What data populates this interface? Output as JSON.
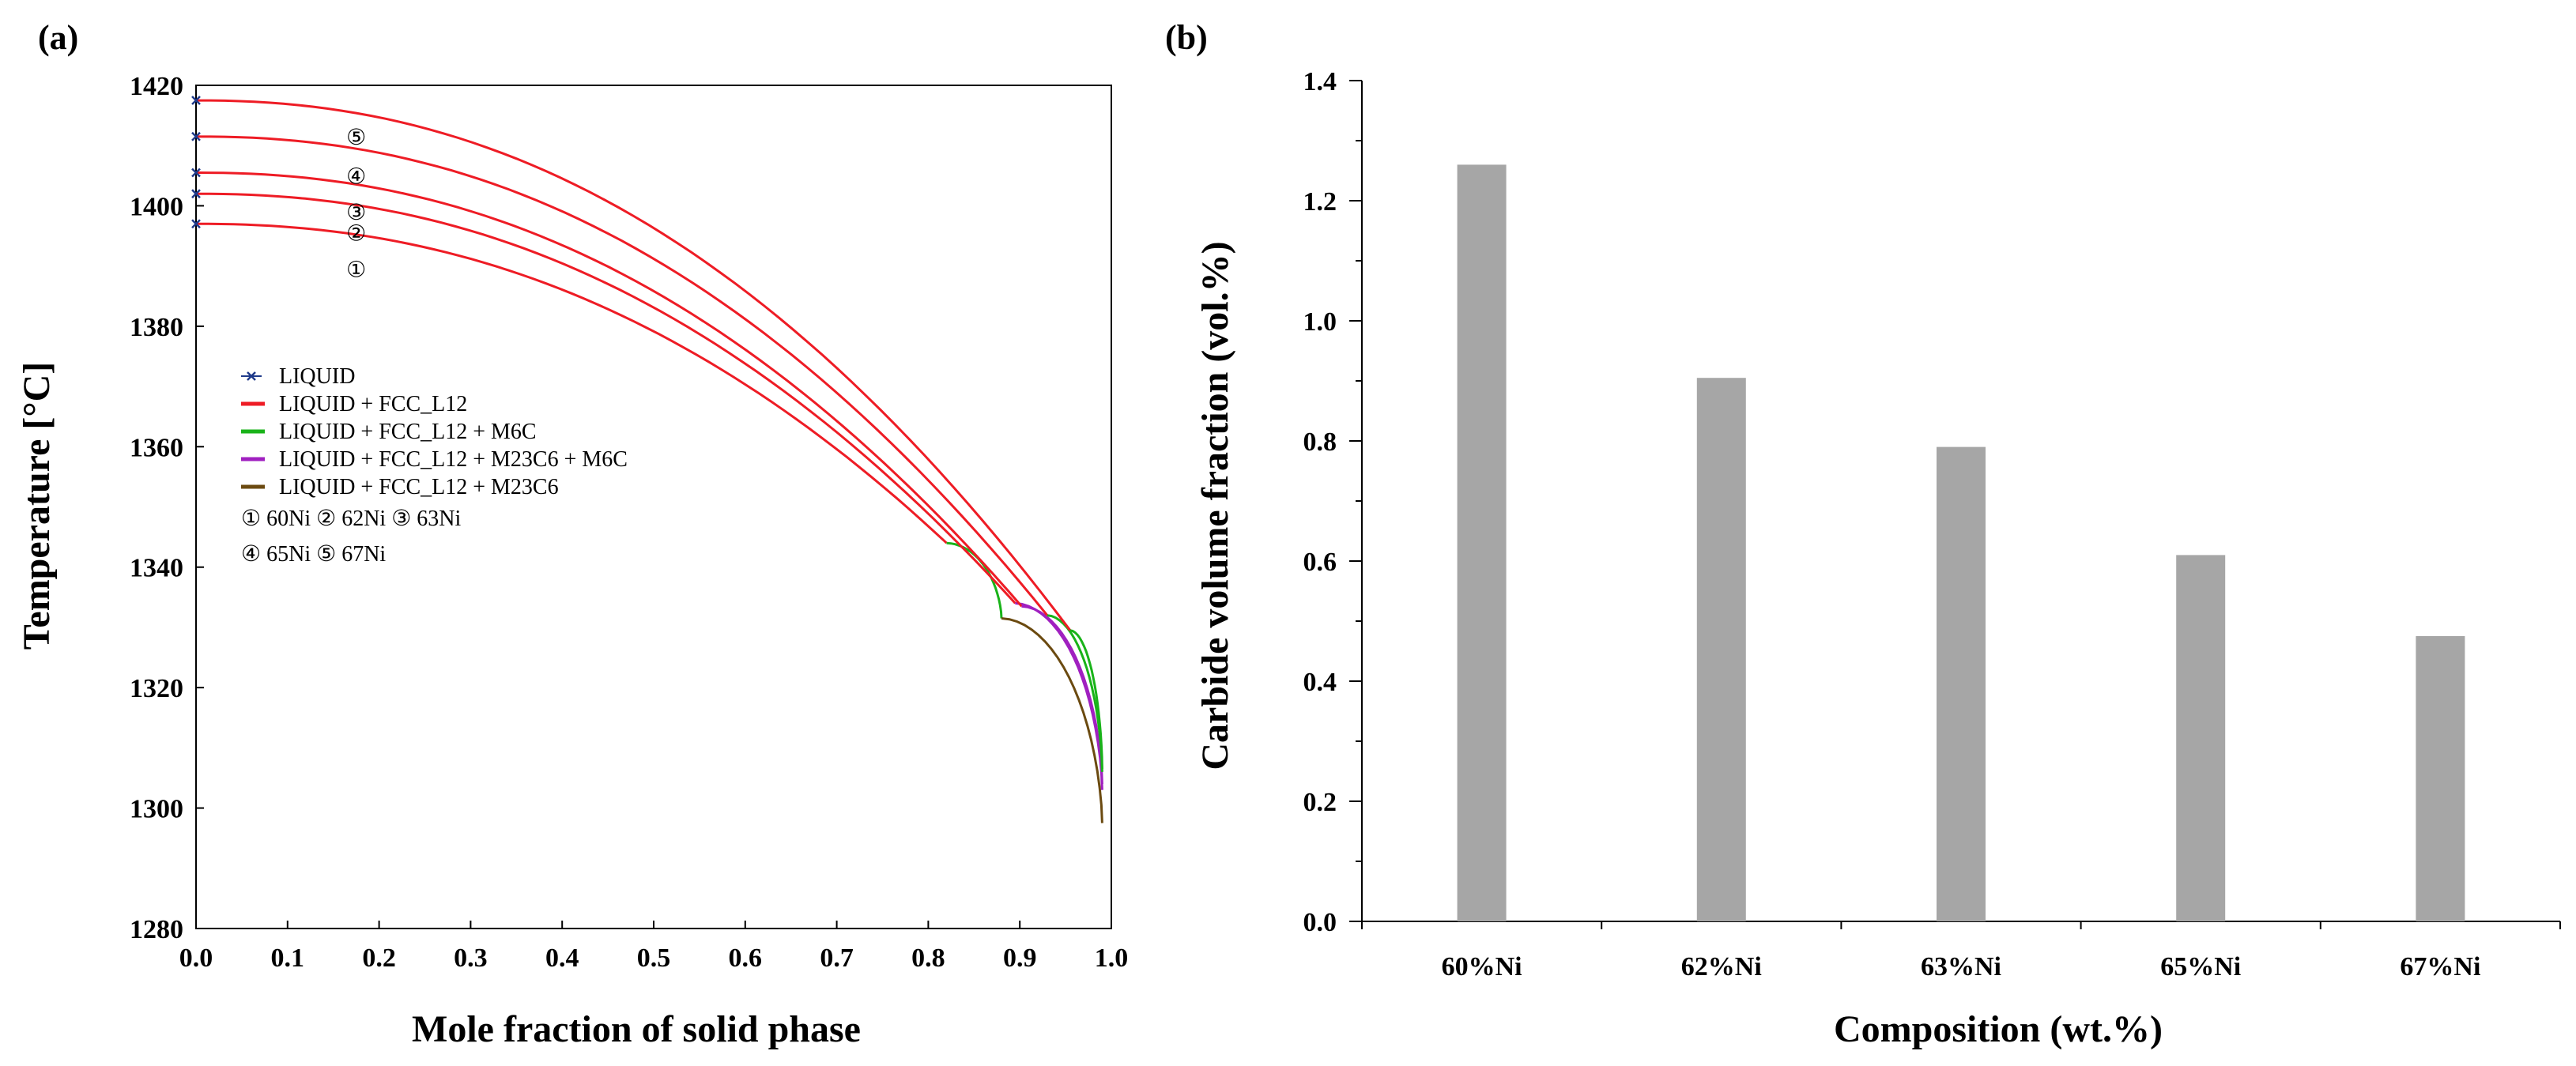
{
  "panel_labels": [
    "(a)",
    "(b)"
  ],
  "chart_data": [
    {
      "type": "line",
      "panel": "(a)",
      "xlabel": "Mole fraction of solid phase",
      "ylabel": "Temperature [°C]",
      "xlim": [
        0.0,
        1.0
      ],
      "ylim": [
        1280,
        1420
      ],
      "xticks": [
        "0.0",
        "0.1",
        "0.2",
        "0.3",
        "0.4",
        "0.5",
        "0.6",
        "0.7",
        "0.8",
        "0.9",
        "1.0"
      ],
      "yticks": [
        "1280",
        "1300",
        "1320",
        "1340",
        "1360",
        "1380",
        "1400",
        "1420"
      ],
      "legend": [
        {
          "label": "LIQUID",
          "color": "#1f3a8a",
          "style": "marker"
        },
        {
          "label": "LIQUID + FCC_L12",
          "color": "#ee1c25",
          "style": "line"
        },
        {
          "label": "LIQUID + FCC_L12 + M6C",
          "color": "#19b319",
          "style": "line"
        },
        {
          "label": "LIQUID + FCC_L12 + M23C6 + M6C",
          "color": "#a020c0",
          "style": "line"
        },
        {
          "label": "LIQUID + FCC_L12 + M23C6",
          "color": "#6b4a10",
          "style": "line"
        }
      ],
      "legend_notes": [
        "① 60Ni ② 62Ni  ③ 63Ni",
        "④ 65Ni ⑤ 67Ni"
      ],
      "curve_labels": [
        {
          "text": "⑤",
          "x": 0.175,
          "y": 1411.5
        },
        {
          "text": "④",
          "x": 0.175,
          "y": 1405
        },
        {
          "text": "③",
          "x": 0.175,
          "y": 1399
        },
        {
          "text": "②",
          "x": 0.175,
          "y": 1395.5
        },
        {
          "text": "①",
          "x": 0.175,
          "y": 1389.5
        }
      ],
      "series": [
        {
          "name": "60Ni",
          "T0": 1397,
          "tail": [
            [
              0.82,
              1344,
              "#ee1c25"
            ],
            [
              0.88,
              1331.5,
              "#19b319"
            ],
            [
              0.99,
              1297.5,
              "#6b4a10"
            ]
          ]
        },
        {
          "name": "62Ni",
          "T0": 1402,
          "tail": [
            [
              0.895,
              1334,
              "#ee1c25"
            ],
            [
              0.99,
              1303,
              "#a020c0"
            ]
          ]
        },
        {
          "name": "63Ni",
          "T0": 1405.5,
          "tail": [
            [
              0.902,
              1333.5,
              "#ee1c25"
            ],
            [
              0.99,
              1304,
              "#a020c0"
            ]
          ]
        },
        {
          "name": "65Ni",
          "T0": 1411.5,
          "tail": [
            [
              0.93,
              1332,
              "#ee1c25"
            ],
            [
              0.99,
              1306,
              "#19b319"
            ]
          ]
        },
        {
          "name": "67Ni",
          "T0": 1417.5,
          "tail": [
            [
              0.955,
              1329.5,
              "#ee1c25"
            ],
            [
              0.99,
              1306.5,
              "#19b319"
            ]
          ]
        }
      ]
    },
    {
      "type": "bar",
      "panel": "(b)",
      "categories": [
        "60%Ni",
        "62%Ni",
        "63%Ni",
        "65%Ni",
        "67%Ni"
      ],
      "values": [
        1.26,
        0.905,
        0.79,
        0.61,
        0.475
      ],
      "xlabel": "Composition (wt.%)",
      "ylabel": "Carbide volume fraction (vol.%)",
      "ylim": [
        0.0,
        1.4
      ],
      "yticks": [
        "0.0",
        "0.2",
        "0.4",
        "0.6",
        "0.8",
        "1.0",
        "1.2",
        "1.4"
      ],
      "bar_color": "#a6a6a6"
    }
  ]
}
